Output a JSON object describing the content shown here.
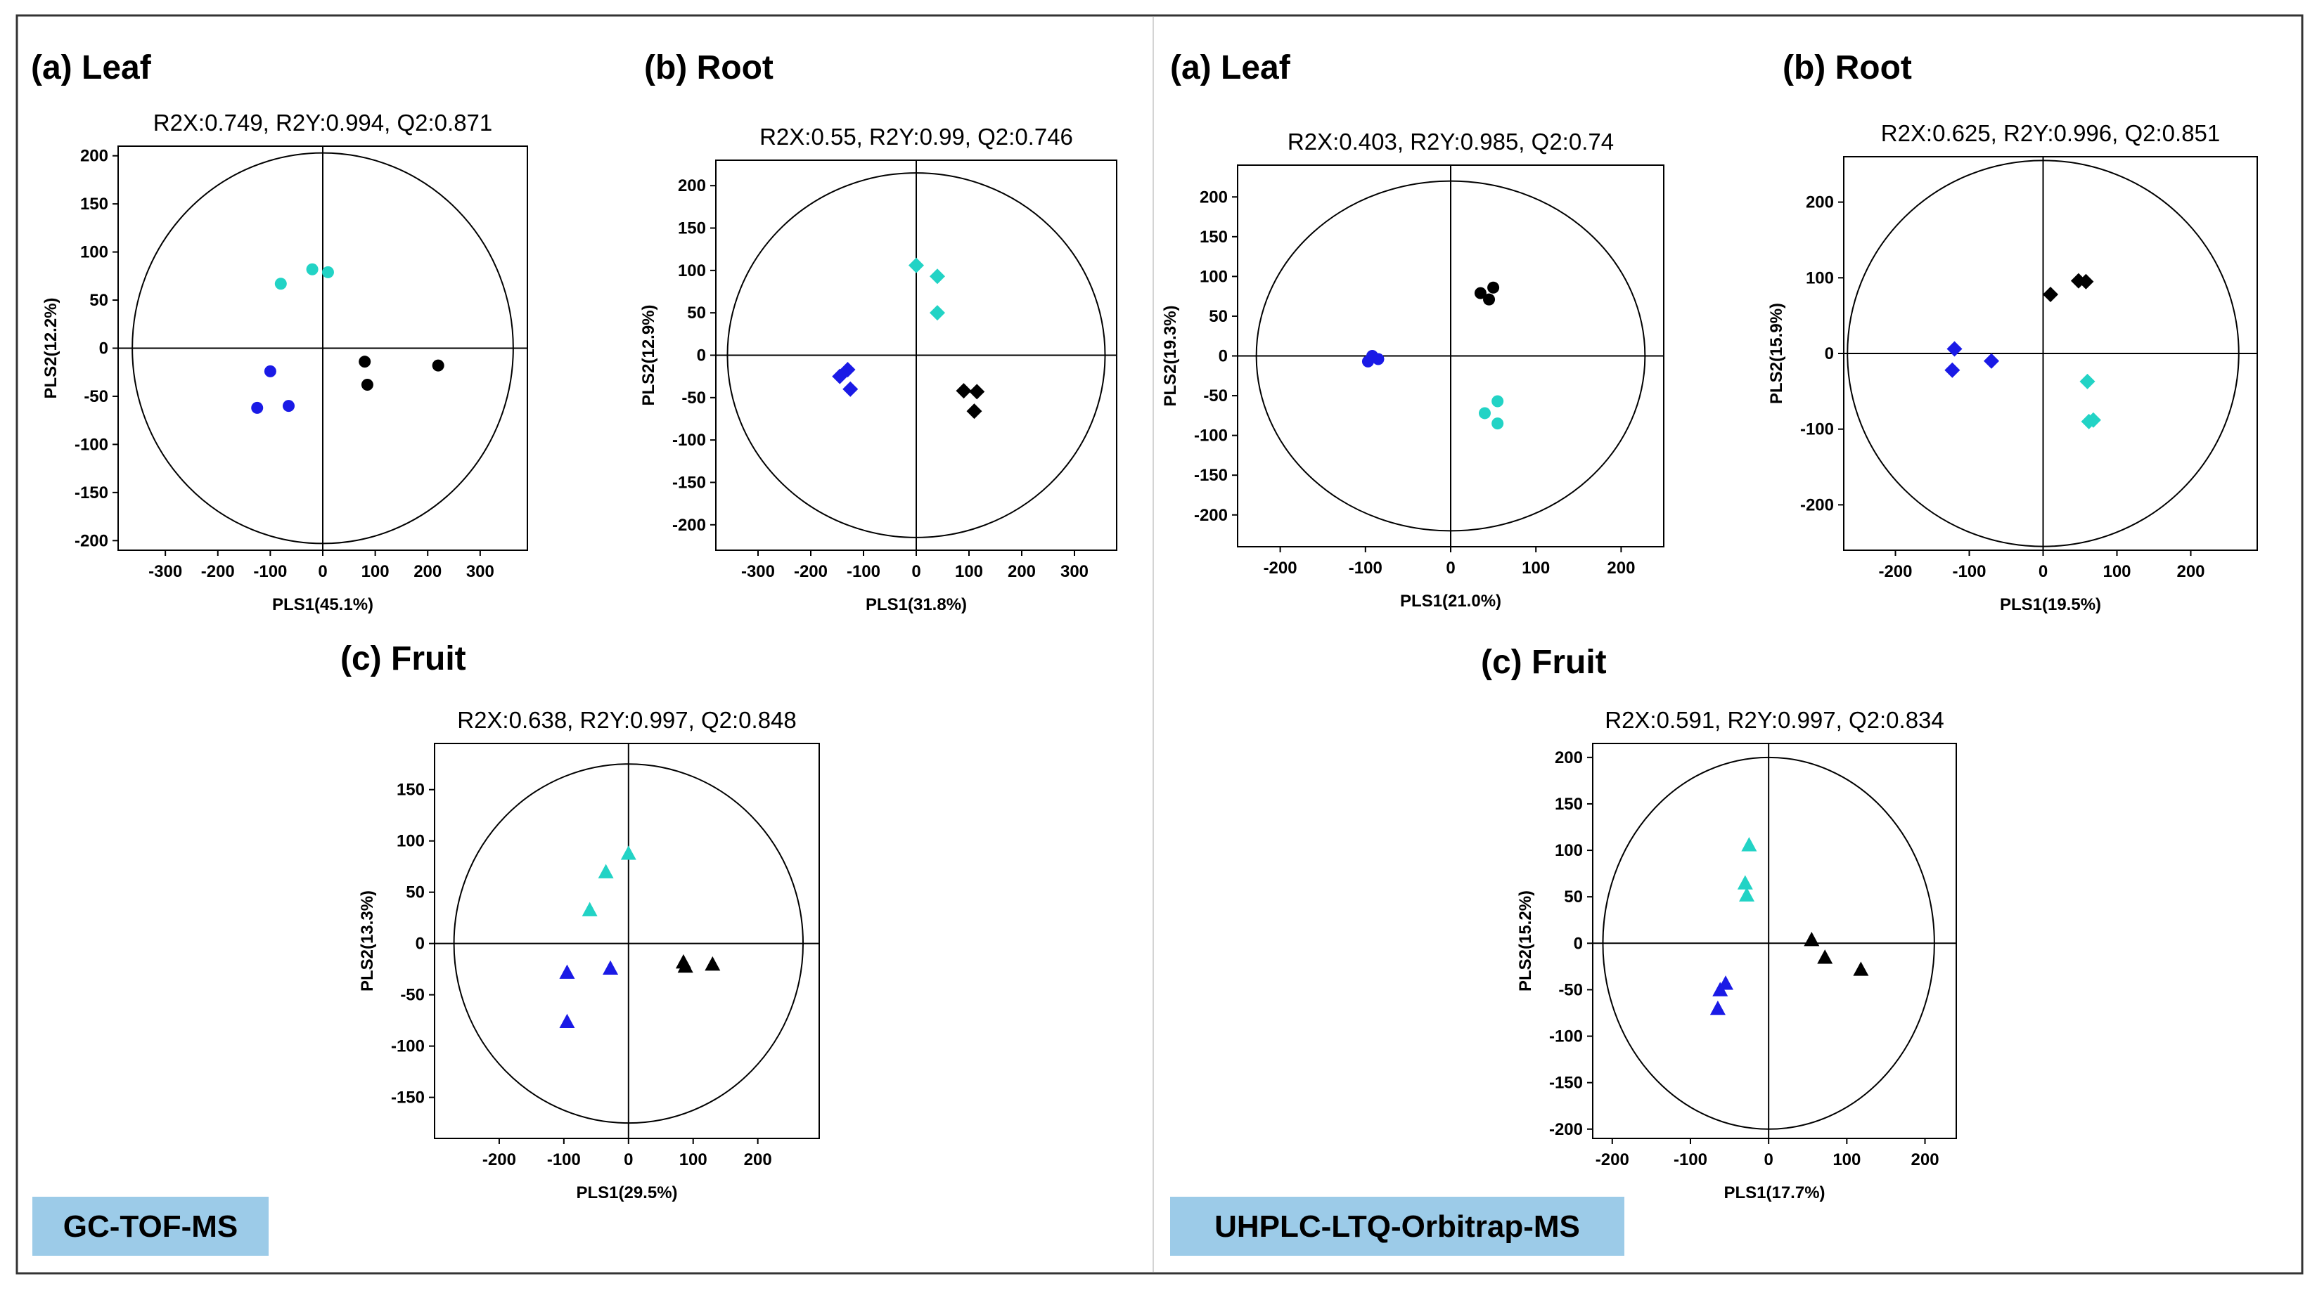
{
  "colors": {
    "black": "#000000",
    "blue": "#1a1ae6",
    "cyan": "#22d3c5",
    "badge": "#9ccbe8",
    "frame": "#333333",
    "divider": "#d4d4d4"
  },
  "badges": {
    "left": "GC-TOF-MS",
    "right": "UHPLC-LTQ-Orbitrap-MS"
  },
  "chart_data": [
    {
      "type": "scatter",
      "platform": "GC-TOF-MS",
      "panel_label": "(a) Leaf",
      "title": "R2X:0.749, R2Y:0.994, Q2:0.871",
      "xlabel": "PLS1(45.1%)",
      "ylabel": "PLS2(12.2%)",
      "xlim": [
        -390,
        390
      ],
      "ylim": [
        -210,
        210
      ],
      "xticks": [
        -300,
        -200,
        -100,
        0,
        100,
        200,
        300
      ],
      "yticks": [
        -200,
        -150,
        -100,
        -50,
        0,
        50,
        100,
        150,
        200
      ],
      "ellipse": {
        "rx": 363,
        "ry": 203
      },
      "marker": "circle",
      "series": [
        {
          "name": "cyan",
          "x": [
            -80,
            -20,
            10
          ],
          "y": [
            67,
            82,
            79
          ]
        },
        {
          "name": "blue",
          "x": [
            -100,
            -125,
            -65
          ],
          "y": [
            -24,
            -62,
            -60
          ]
        },
        {
          "name": "black",
          "x": [
            80,
            85,
            220
          ],
          "y": [
            -14,
            -38,
            -18
          ]
        }
      ]
    },
    {
      "type": "scatter",
      "platform": "GC-TOF-MS",
      "panel_label": "(b) Root",
      "title": "R2X:0.55, R2Y:0.99, Q2:0.746",
      "xlabel": "PLS1(31.8%)",
      "ylabel": "PLS2(12.9%)",
      "xlim": [
        -380,
        380
      ],
      "ylim": [
        -230,
        230
      ],
      "xticks": [
        -300,
        -200,
        -100,
        0,
        100,
        200,
        300
      ],
      "yticks": [
        -200,
        -150,
        -100,
        -50,
        0,
        50,
        100,
        150,
        200
      ],
      "ellipse": {
        "rx": 358,
        "ry": 215
      },
      "marker": "diamond",
      "series": [
        {
          "name": "cyan",
          "x": [
            0,
            40,
            40
          ],
          "y": [
            106,
            93,
            50
          ]
        },
        {
          "name": "blue",
          "x": [
            -130,
            -145,
            -125
          ],
          "y": [
            -17,
            -25,
            -40
          ]
        },
        {
          "name": "black",
          "x": [
            90,
            115,
            110
          ],
          "y": [
            -42,
            -43,
            -66
          ]
        }
      ]
    },
    {
      "type": "scatter",
      "platform": "UHPLC-LTQ-Orbitrap-MS",
      "panel_label": "(a) Leaf",
      "title": "R2X:0.403, R2Y:0.985, Q2:0.74",
      "xlabel": "PLS1(21.0%)",
      "ylabel": "PLS2(19.3%)",
      "xlim": [
        -250,
        250
      ],
      "ylim": [
        -240,
        240
      ],
      "xticks": [
        -200,
        -100,
        0,
        100,
        200
      ],
      "yticks": [
        -200,
        -150,
        -100,
        -50,
        0,
        50,
        100,
        150,
        200
      ],
      "ellipse": {
        "rx": 228,
        "ry": 220
      },
      "marker": "circle",
      "series": [
        {
          "name": "cyan",
          "x": [
            40,
            55,
            55
          ],
          "y": [
            -72,
            -57,
            -85
          ]
        },
        {
          "name": "blue",
          "x": [
            -92,
            -85,
            -97
          ],
          "y": [
            0,
            -4,
            -7
          ]
        },
        {
          "name": "black",
          "x": [
            35,
            50,
            45
          ],
          "y": [
            79,
            86,
            71
          ]
        }
      ]
    },
    {
      "type": "scatter",
      "platform": "UHPLC-LTQ-Orbitrap-MS",
      "panel_label": "(b) Root",
      "title": "R2X:0.625, R2Y:0.996, Q2:0.851",
      "xlabel": "PLS1(19.5%)",
      "ylabel": "PLS2(15.9%)",
      "xlim": [
        -270,
        290
      ],
      "ylim": [
        -260,
        260
      ],
      "xticks": [
        -200,
        -100,
        0,
        100,
        200
      ],
      "yticks": [
        -200,
        -100,
        0,
        100,
        200
      ],
      "ellipse": {
        "rx": 265,
        "ry": 255
      },
      "marker": "diamond",
      "series": [
        {
          "name": "cyan",
          "x": [
            60,
            62,
            68
          ],
          "y": [
            -37,
            -90,
            -88
          ]
        },
        {
          "name": "blue",
          "x": [
            -120,
            -123,
            -70
          ],
          "y": [
            6,
            -22,
            -10
          ]
        },
        {
          "name": "black",
          "x": [
            10,
            48,
            58
          ],
          "y": [
            78,
            96,
            95
          ]
        }
      ]
    },
    {
      "type": "scatter",
      "platform": "GC-TOF-MS",
      "panel_label": "(c) Fruit",
      "title": "R2X:0.638, R2Y:0.997, Q2:0.848",
      "xlabel": "PLS1(29.5%)",
      "ylabel": "PLS2(13.3%)",
      "xlim": [
        -300,
        295
      ],
      "ylim": [
        -190,
        195
      ],
      "xticks": [
        -200,
        -100,
        0,
        100,
        200
      ],
      "yticks": [
        -150,
        -100,
        -50,
        0,
        50,
        100,
        150
      ],
      "ellipse": {
        "rx": 270,
        "ry": 175
      },
      "marker": "triangle",
      "series": [
        {
          "name": "cyan",
          "x": [
            0,
            -35,
            -60
          ],
          "y": [
            88,
            70,
            33
          ]
        },
        {
          "name": "blue",
          "x": [
            -95,
            -28,
            -95
          ],
          "y": [
            -28,
            -24,
            -76
          ]
        },
        {
          "name": "black",
          "x": [
            85,
            88,
            130
          ],
          "y": [
            -18,
            -22,
            -20
          ]
        }
      ]
    },
    {
      "type": "scatter",
      "platform": "UHPLC-LTQ-Orbitrap-MS",
      "panel_label": "(c) Fruit",
      "title": "R2X:0.591, R2Y:0.997, Q2:0.834",
      "xlabel": "PLS1(17.7%)",
      "ylabel": "PLS2(15.2%)",
      "xlim": [
        -225,
        240
      ],
      "ylim": [
        -210,
        215
      ],
      "xticks": [
        -200,
        -100,
        0,
        100,
        200
      ],
      "yticks": [
        -200,
        -150,
        -100,
        -50,
        0,
        50,
        100,
        150,
        200
      ],
      "ellipse": {
        "rx": 212,
        "ry": 200
      },
      "marker": "triangle",
      "series": [
        {
          "name": "cyan",
          "x": [
            -25,
            -30,
            -28
          ],
          "y": [
            106,
            65,
            52
          ]
        },
        {
          "name": "blue",
          "x": [
            -55,
            -62,
            -65
          ],
          "y": [
            -43,
            -50,
            -70
          ]
        },
        {
          "name": "black",
          "x": [
            55,
            72,
            118
          ],
          "y": [
            4,
            -15,
            -28
          ]
        }
      ]
    }
  ]
}
